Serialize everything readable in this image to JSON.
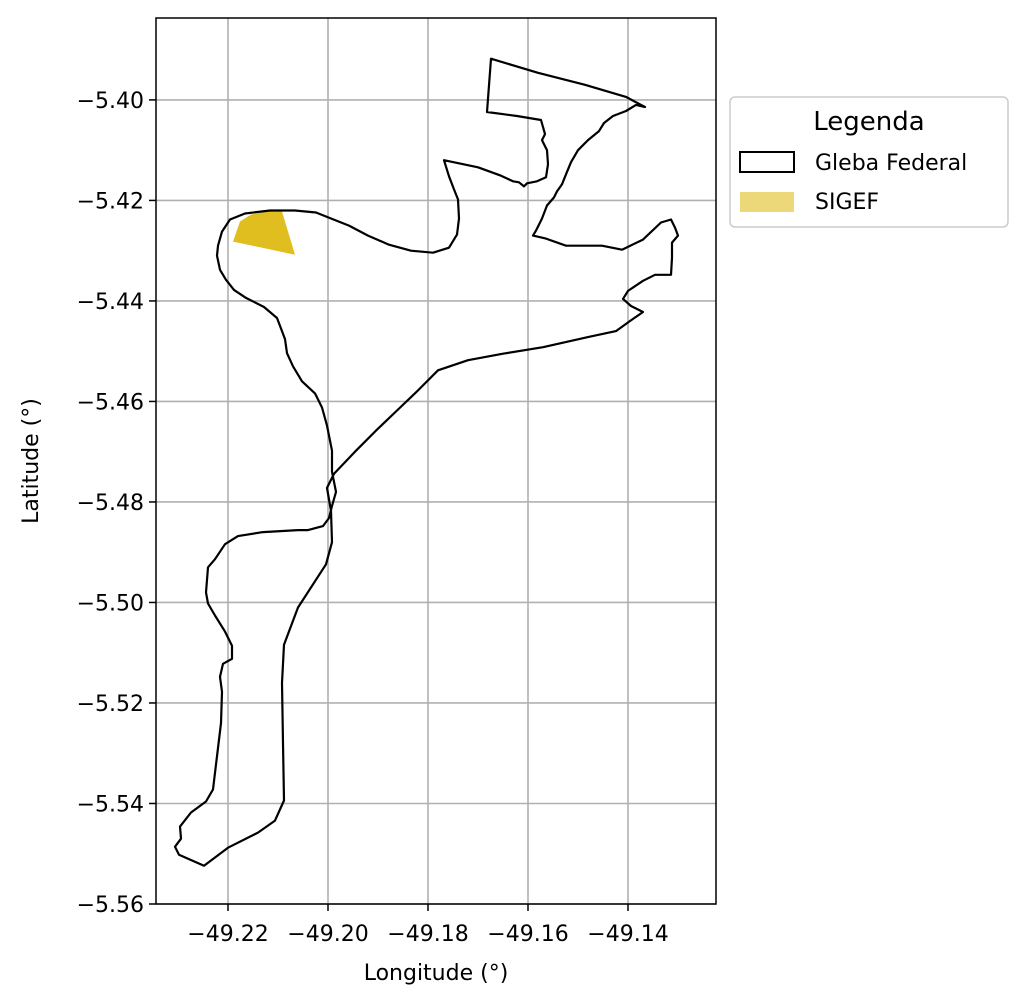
{
  "chart_data": {
    "type": "map",
    "xlabel": "Longitude (°)",
    "ylabel": "Latitude (°)",
    "xlim": [
      -49.2344,
      -49.1224
    ],
    "ylim": [
      -5.56,
      -5.3837
    ],
    "xticks": [
      -49.22,
      -49.2,
      -49.18,
      -49.16,
      -49.14
    ],
    "yticks": [
      -5.4,
      -5.42,
      -5.44,
      -5.46,
      -5.48,
      -5.5,
      -5.52,
      -5.54,
      -5.56
    ],
    "xtick_labels": [
      "−49.22",
      "−49.20",
      "−49.18",
      "−49.16",
      "−49.14"
    ],
    "ytick_labels": [
      "−5.40",
      "−5.42",
      "−5.44",
      "−5.46",
      "−5.48",
      "−5.50",
      "−5.52",
      "−5.54",
      "−5.56"
    ],
    "grid": true,
    "legend": {
      "title": "Legenda",
      "placement": "outside-upper-right",
      "entries": [
        "Gleba Federal",
        "SIGEF"
      ]
    },
    "layers": [
      {
        "name": "Gleba Federal",
        "fill": "none",
        "stroke": "#000000",
        "polygon": [
          [
            -49.1674,
            -5.3918
          ],
          [
            -49.158,
            -5.3946
          ],
          [
            -49.1486,
            -5.397
          ],
          [
            -49.1404,
            -5.3994
          ],
          [
            -49.1366,
            -5.4014
          ],
          [
            -49.1384,
            -5.401
          ],
          [
            -49.1404,
            -5.4022
          ],
          [
            -49.143,
            -5.4032
          ],
          [
            -49.1448,
            -5.4046
          ],
          [
            -49.1458,
            -5.4062
          ],
          [
            -49.148,
            -5.408
          ],
          [
            -49.15,
            -5.41
          ],
          [
            -49.1514,
            -5.4124
          ],
          [
            -49.1524,
            -5.4148
          ],
          [
            -49.1532,
            -5.4168
          ],
          [
            -49.1542,
            -5.4182
          ],
          [
            -49.1548,
            -5.4194
          ],
          [
            -49.1562,
            -5.421
          ],
          [
            -49.1572,
            -5.4236
          ],
          [
            -49.1584,
            -5.426
          ],
          [
            -49.159,
            -5.427
          ],
          [
            -49.1564,
            -5.4276
          ],
          [
            -49.1524,
            -5.429
          ],
          [
            -49.1452,
            -5.429
          ],
          [
            -49.1412,
            -5.4298
          ],
          [
            -49.137,
            -5.4278
          ],
          [
            -49.1334,
            -5.4244
          ],
          [
            -49.1314,
            -5.4238
          ],
          [
            -49.1306,
            -5.4254
          ],
          [
            -49.13,
            -5.427
          ],
          [
            -49.1312,
            -5.4284
          ],
          [
            -49.1312,
            -5.4314
          ],
          [
            -49.1314,
            -5.4348
          ],
          [
            -49.1346,
            -5.4348
          ],
          [
            -49.137,
            -5.436
          ],
          [
            -49.14,
            -5.438
          ],
          [
            -49.141,
            -5.4396
          ],
          [
            -49.1394,
            -5.441
          ],
          [
            -49.137,
            -5.4422
          ],
          [
            -49.1396,
            -5.444
          ],
          [
            -49.1424,
            -5.446
          ],
          [
            -49.148,
            -5.4472
          ],
          [
            -49.157,
            -5.4492
          ],
          [
            -49.165,
            -5.4505
          ],
          [
            -49.172,
            -5.4518
          ],
          [
            -49.178,
            -5.4538
          ],
          [
            -49.182,
            -5.4578
          ],
          [
            -49.1862,
            -5.4618
          ],
          [
            -49.1904,
            -5.4658
          ],
          [
            -49.1946,
            -5.47
          ],
          [
            -49.1988,
            -5.4744
          ],
          [
            -49.2002,
            -5.4772
          ],
          [
            -49.1994,
            -5.4818
          ],
          [
            -49.1992,
            -5.488
          ],
          [
            -49.2004,
            -5.4924
          ],
          [
            -49.206,
            -5.501
          ],
          [
            -49.2088,
            -5.5084
          ],
          [
            -49.2092,
            -5.516
          ],
          [
            -49.209,
            -5.528
          ],
          [
            -49.2088,
            -5.5394
          ],
          [
            -49.2106,
            -5.5434
          ],
          [
            -49.214,
            -5.5458
          ],
          [
            -49.22,
            -5.5488
          ],
          [
            -49.2248,
            -5.5524
          ],
          [
            -49.2298,
            -5.5502
          ],
          [
            -49.2306,
            -5.5486
          ],
          [
            -49.2294,
            -5.547
          ],
          [
            -49.2296,
            -5.5446
          ],
          [
            -49.2274,
            -5.5418
          ],
          [
            -49.2244,
            -5.5396
          ],
          [
            -49.223,
            -5.5372
          ],
          [
            -49.2222,
            -5.5306
          ],
          [
            -49.2214,
            -5.524
          ],
          [
            -49.2212,
            -5.5178
          ],
          [
            -49.2216,
            -5.5148
          ],
          [
            -49.221,
            -5.5122
          ],
          [
            -49.2192,
            -5.5112
          ],
          [
            -49.2192,
            -5.5086
          ],
          [
            -49.2206,
            -5.5058
          ],
          [
            -49.2226,
            -5.5026
          ],
          [
            -49.224,
            -5.5002
          ],
          [
            -49.2244,
            -5.498
          ],
          [
            -49.224,
            -5.493
          ],
          [
            -49.2226,
            -5.4914
          ],
          [
            -49.2206,
            -5.4884
          ],
          [
            -49.218,
            -5.4868
          ],
          [
            -49.213,
            -5.486
          ],
          [
            -49.206,
            -5.4856
          ],
          [
            -49.204,
            -5.4856
          ],
          [
            -49.201,
            -5.4848
          ],
          [
            -49.1998,
            -5.4832
          ],
          [
            -49.1992,
            -5.4808
          ],
          [
            -49.1984,
            -5.478
          ],
          [
            -49.1992,
            -5.474
          ],
          [
            -49.1992,
            -5.4698
          ],
          [
            -49.2002,
            -5.4648
          ],
          [
            -49.2012,
            -5.4612
          ],
          [
            -49.2026,
            -5.4584
          ],
          [
            -49.2052,
            -5.456
          ],
          [
            -49.207,
            -5.453
          ],
          [
            -49.2082,
            -5.4504
          ],
          [
            -49.2086,
            -5.4476
          ],
          [
            -49.2092,
            -5.446
          ],
          [
            -49.2102,
            -5.4434
          ],
          [
            -49.2128,
            -5.4412
          ],
          [
            -49.2164,
            -5.4394
          ],
          [
            -49.2188,
            -5.4378
          ],
          [
            -49.2204,
            -5.4358
          ],
          [
            -49.2216,
            -5.4338
          ],
          [
            -49.2222,
            -5.431
          ],
          [
            -49.222,
            -5.429
          ],
          [
            -49.2212,
            -5.4262
          ],
          [
            -49.2196,
            -5.4238
          ],
          [
            -49.2166,
            -5.4226
          ],
          [
            -49.2116,
            -5.422
          ],
          [
            -49.2066,
            -5.422
          ],
          [
            -49.2024,
            -5.4224
          ],
          [
            -49.1994,
            -5.4236
          ],
          [
            -49.1958,
            -5.425
          ],
          [
            -49.192,
            -5.427
          ],
          [
            -49.1878,
            -5.4288
          ],
          [
            -49.1834,
            -5.43
          ],
          [
            -49.179,
            -5.4304
          ],
          [
            -49.1758,
            -5.4294
          ],
          [
            -49.1742,
            -5.4268
          ],
          [
            -49.1738,
            -5.4236
          ],
          [
            -49.174,
            -5.4198
          ],
          [
            -49.1748,
            -5.4178
          ],
          [
            -49.1758,
            -5.4152
          ],
          [
            -49.1768,
            -5.412
          ],
          [
            -49.17,
            -5.4134
          ],
          [
            -49.1656,
            -5.415
          ],
          [
            -49.163,
            -5.4162
          ],
          [
            -49.1618,
            -5.4164
          ],
          [
            -49.1608,
            -5.4172
          ],
          [
            -49.1602,
            -5.4166
          ],
          [
            -49.1582,
            -5.4162
          ],
          [
            -49.1564,
            -5.4154
          ],
          [
            -49.156,
            -5.4128
          ],
          [
            -49.1562,
            -5.41
          ],
          [
            -49.1572,
            -5.408
          ],
          [
            -49.1566,
            -5.4068
          ],
          [
            -49.1574,
            -5.404
          ],
          [
            -49.1622,
            -5.4032
          ],
          [
            -49.1682,
            -5.4024
          ],
          [
            -49.1674,
            -5.3918
          ]
        ]
      },
      {
        "name": "SIGEF",
        "fill": "#e0be20",
        "stroke": "none",
        "polygon": [
          [
            -49.219,
            -5.4282
          ],
          [
            -49.2176,
            -5.4242
          ],
          [
            -49.2154,
            -5.4228
          ],
          [
            -49.2124,
            -5.4222
          ],
          [
            -49.2092,
            -5.4222
          ],
          [
            -49.2066,
            -5.4308
          ]
        ]
      }
    ]
  }
}
